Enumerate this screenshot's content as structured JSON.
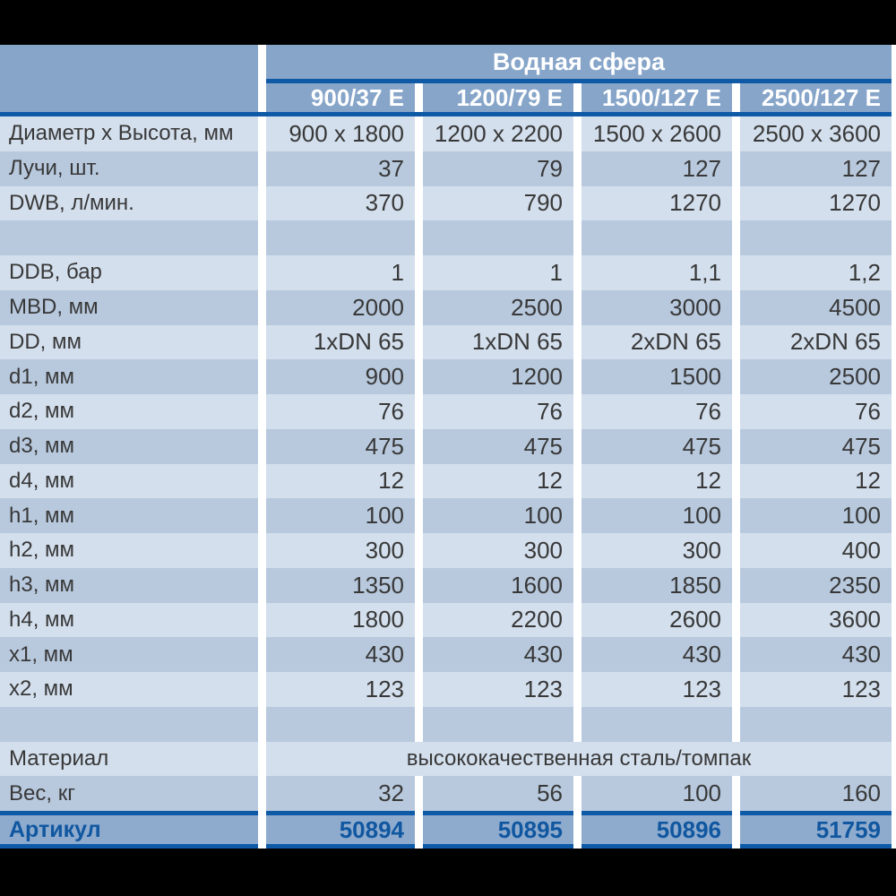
{
  "table": {
    "group_header": "Водная сфера",
    "columns": [
      "900/37 E",
      "1200/79 E",
      "1500/127 E",
      "2500/127 E"
    ],
    "rows": [
      {
        "type": "data",
        "label": "Диаметр x Высота, мм",
        "values": [
          "900 x 1800",
          "1200 x 2200",
          "1500 x 2600",
          "2500 x 3600"
        ]
      },
      {
        "type": "data",
        "label": "Лучи, шт.",
        "values": [
          "37",
          "79",
          "127",
          "127"
        ]
      },
      {
        "type": "data",
        "label": "DWB, л/мин.",
        "values": [
          "370",
          "790",
          "1270",
          "1270"
        ]
      },
      {
        "type": "spacer"
      },
      {
        "type": "data",
        "label": "DDB, бар",
        "values": [
          "1",
          "1",
          "1,1",
          "1,2"
        ]
      },
      {
        "type": "data",
        "label": "MBD, мм",
        "values": [
          "2000",
          "2500",
          "3000",
          "4500"
        ]
      },
      {
        "type": "data",
        "label": "DD, мм",
        "values": [
          "1xDN 65",
          "1xDN 65",
          "2xDN 65",
          "2xDN 65"
        ]
      },
      {
        "type": "data",
        "label": "d1, мм",
        "values": [
          "900",
          "1200",
          "1500",
          "2500"
        ]
      },
      {
        "type": "data",
        "label": "d2, мм",
        "values": [
          "76",
          "76",
          "76",
          "76"
        ]
      },
      {
        "type": "data",
        "label": "d3, мм",
        "values": [
          "475",
          "475",
          "475",
          "475"
        ]
      },
      {
        "type": "data",
        "label": "d4, мм",
        "values": [
          "12",
          "12",
          "12",
          "12"
        ]
      },
      {
        "type": "data",
        "label": "h1, мм",
        "values": [
          "100",
          "100",
          "100",
          "100"
        ]
      },
      {
        "type": "data",
        "label": "h2, мм",
        "values": [
          "300",
          "300",
          "300",
          "400"
        ]
      },
      {
        "type": "data",
        "label": "h3, мм",
        "values": [
          "1350",
          "1600",
          "1850",
          "2350"
        ]
      },
      {
        "type": "data",
        "label": "h4, мм",
        "values": [
          "1800",
          "2200",
          "2600",
          "3600"
        ]
      },
      {
        "type": "data",
        "label": "x1, мм",
        "values": [
          "430",
          "430",
          "430",
          "430"
        ]
      },
      {
        "type": "data",
        "label": "x2, мм",
        "values": [
          "123",
          "123",
          "123",
          "123"
        ]
      },
      {
        "type": "spacer"
      },
      {
        "type": "span",
        "label": "Материал",
        "span_value": "высококачественная сталь/томпак"
      },
      {
        "type": "data",
        "label": "Вес, кг",
        "values": [
          "32",
          "56",
          "100",
          "160"
        ]
      },
      {
        "type": "footer",
        "label": "Артикул",
        "values": [
          "50894",
          "50895",
          "50896",
          "51759"
        ]
      }
    ],
    "colors": {
      "page_background": "#000000",
      "header_band": "#87a5c9",
      "row_light": "#d3dfed",
      "row_dark": "#b8c9de",
      "footer_band": "#8eabce",
      "rule_line": "#0f5aa6",
      "separator": "#ffffff",
      "text_dark": "#383838",
      "text_header": "#ffffff",
      "text_footer": "#1057a0"
    }
  }
}
